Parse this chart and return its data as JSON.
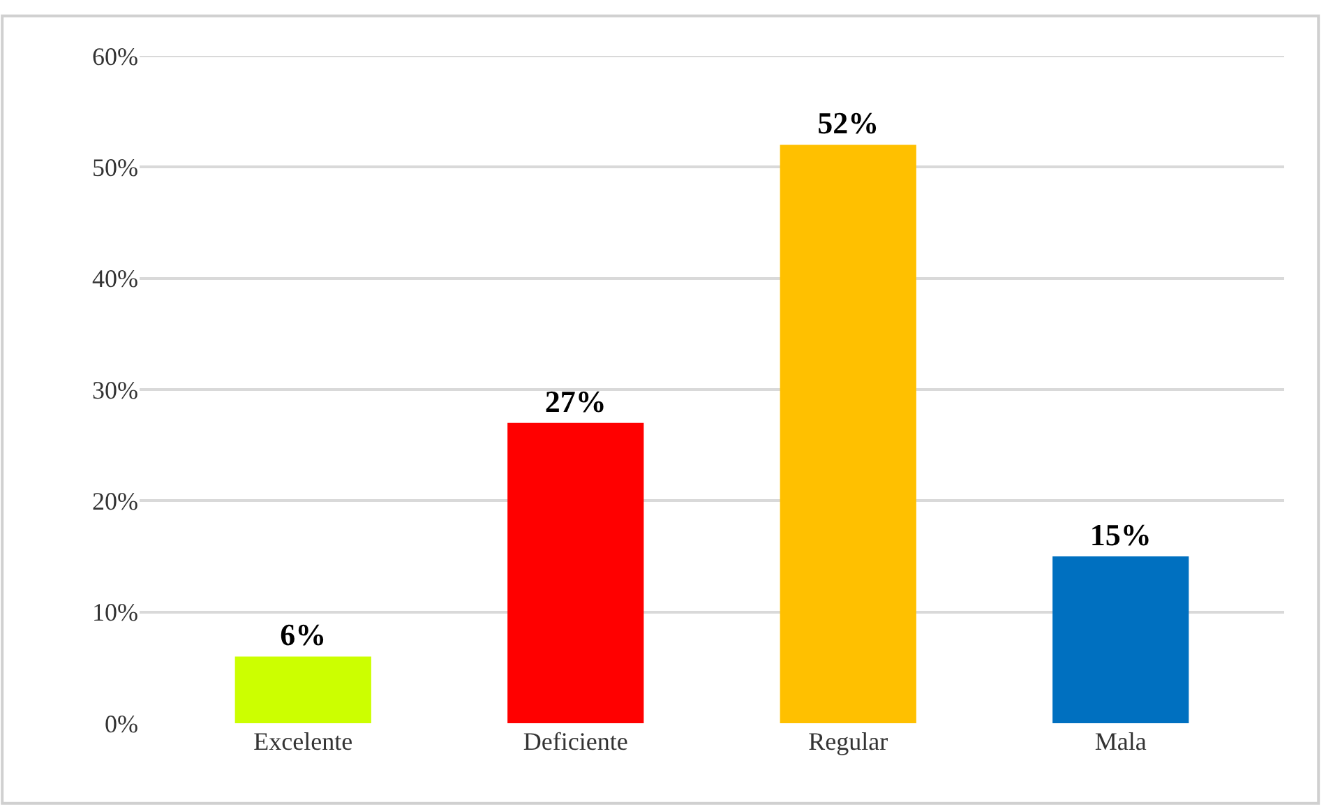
{
  "chart_data": {
    "type": "bar",
    "categories": [
      "Excelente",
      "Deficiente",
      "Regular",
      "Mala"
    ],
    "values": [
      6,
      27,
      52,
      15
    ],
    "colors": [
      "#ccff00",
      "#ff0000",
      "#ffc000",
      "#0070c0"
    ],
    "value_labels": [
      "6%",
      "27%",
      "52%",
      "15%"
    ],
    "ylim": [
      0,
      60
    ],
    "yticks": [
      {
        "value": 0,
        "label": "0%"
      },
      {
        "value": 10,
        "label": "10%"
      },
      {
        "value": 20,
        "label": "20%"
      },
      {
        "value": 30,
        "label": "30%"
      },
      {
        "value": 40,
        "label": "40%"
      },
      {
        "value": 50,
        "label": "50%"
      },
      {
        "value": 60,
        "label": "60%"
      }
    ],
    "grid": "y"
  }
}
